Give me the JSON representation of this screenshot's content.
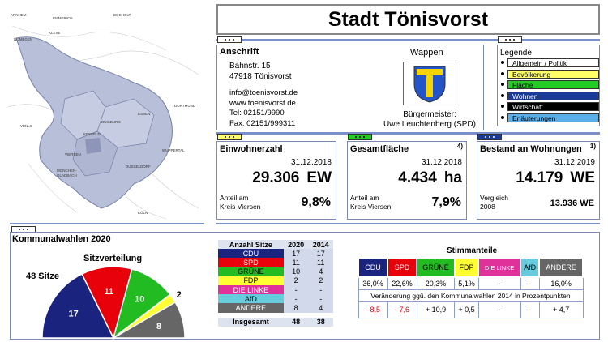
{
  "title": "Stadt Tönisvorst",
  "map": {
    "labels": [
      "ARNHEM",
      "KLEVE",
      "NIJMEGEN",
      "EMMERICH",
      "BOCHOLT",
      "DUISBURG",
      "ESSEN",
      "DORTMUND",
      "KREFELD",
      "DÜSSELDORF",
      "WUPPERTAL",
      "MÖNCHEN-GLADBACH",
      "KÖLN",
      "VENLO",
      "VIERSEN"
    ]
  },
  "address": {
    "heading": "Anschrift",
    "street": "Bahnstr. 15",
    "city": "47918 Tönisvorst",
    "email": "info@toenisvorst.de",
    "web": "www.toenisvorst.de",
    "tel": "Tel: 02151/9990",
    "fax": "Fax: 02151/999311"
  },
  "wappen": {
    "heading": "Wappen",
    "mayor_label": "Bürgermeister:",
    "mayor": "Uwe Leuchtenberg (SPD)"
  },
  "legend": {
    "heading": "Legende",
    "items": [
      {
        "label": "Allgemein / Politik",
        "color": "#ffffff",
        "text": "#000"
      },
      {
        "label": "Bevölkerung",
        "color": "#ffff66",
        "text": "#000"
      },
      {
        "label": "Fläche",
        "color": "#22cc22",
        "text": "#000"
      },
      {
        "label": "Wohnen",
        "color": "#1a3a9a",
        "text": "#fff"
      },
      {
        "label": "Wirtschaft",
        "color": "#000000",
        "text": "#fff"
      },
      {
        "label": "Erläuterungen",
        "color": "#5aaee8",
        "text": "#000"
      }
    ]
  },
  "stats": [
    {
      "title": "Einwohnerzahl",
      "sup": "",
      "date": "31.12.2018",
      "value": "29.306",
      "unit": "EW",
      "sub1": "Anteil am",
      "sub2": "Kreis Viersen",
      "subvalue": "9,8%",
      "tabcolor": "#ffff66"
    },
    {
      "title": "Gesamtfläche",
      "sup": "4)",
      "date": "31.12.2018",
      "value": "4.434",
      "unit": "ha",
      "sub1": "Anteil am",
      "sub2": "Kreis Viersen",
      "subvalue": "7,9%",
      "tabcolor": "#22cc22"
    },
    {
      "title": "Bestand an Wohnungen",
      "sup": "1)",
      "date": "31.12.2019",
      "value": "14.179",
      "unit": "WE",
      "sub1": "Vergleich",
      "sub2": "2008",
      "subvalue": "13.936  WE",
      "tabcolor": "#1a3a9a"
    }
  ],
  "election": {
    "heading": "Kommunalwahlen 2020",
    "pie_title": "Sitzverteilung",
    "seats_label": "48 Sitze"
  },
  "seats_table": {
    "headers": [
      "Anzahl Sitze",
      "2020",
      "2014"
    ],
    "rows": [
      {
        "party": "CDU",
        "v2020": "17",
        "v2014": "17",
        "bg": "#1a237e",
        "fg": "#fff"
      },
      {
        "party": "SPD",
        "v2020": "11",
        "v2014": "11",
        "bg": "#e8000a",
        "fg": "#fff"
      },
      {
        "party": "GRÜNE",
        "v2020": "10",
        "v2014": "4",
        "bg": "#22bb22",
        "fg": "#000"
      },
      {
        "party": "FDP",
        "v2020": "2",
        "v2014": "2",
        "bg": "#ffff33",
        "fg": "#000"
      },
      {
        "party": "DIE LINKE",
        "v2020": "-",
        "v2014": "-",
        "bg": "#e0309a",
        "fg": "#fff"
      },
      {
        "party": "AfD",
        "v2020": "-",
        "v2014": "-",
        "bg": "#66ccdd",
        "fg": "#000"
      },
      {
        "party": "ANDERE",
        "v2020": "8",
        "v2014": "4",
        "bg": "#666666",
        "fg": "#fff"
      }
    ],
    "total_label": "Insgesamt",
    "total_2020": "48",
    "total_2014": "38"
  },
  "stimmanteile": {
    "heading": "Stimmanteile",
    "parties": [
      {
        "name": "CDU",
        "bg": "#1a237e",
        "fg": "#fff"
      },
      {
        "name": "SPD",
        "bg": "#e8000a",
        "fg": "#fff"
      },
      {
        "name": "GRÜNE",
        "bg": "#22bb22",
        "fg": "#000"
      },
      {
        "name": "FDP",
        "bg": "#ffff33",
        "fg": "#000"
      },
      {
        "name": "DIE LINKE",
        "bg": "#e0309a",
        "fg": "#fff"
      },
      {
        "name": "AfD",
        "bg": "#66ccdd",
        "fg": "#000"
      },
      {
        "name": "ANDERE",
        "bg": "#666666",
        "fg": "#fff"
      }
    ],
    "shares": [
      "36,0%",
      "22,6%",
      "20,3%",
      "5,1%",
      "-",
      "-",
      "16,0%"
    ],
    "change_label": "Veränderung ggü. den Kommunalwahlen 2014 in Prozentpunkten",
    "changes": [
      "- 8,5",
      "- 7,6",
      "+ 10,9",
      "+ 0,5",
      "-",
      "-",
      "+ 4,7"
    ]
  },
  "chart_data": {
    "type": "pie",
    "title": "Sitzverteilung",
    "categories": [
      "CDU",
      "SPD",
      "GRÜNE",
      "FDP",
      "ANDERE"
    ],
    "values": [
      17,
      11,
      10,
      2,
      8
    ],
    "colors": [
      "#1a237e",
      "#e8000a",
      "#22bb22",
      "#ffff33",
      "#666666"
    ],
    "label_colors": [
      "#fff",
      "#fff",
      "#fff",
      "#000",
      "#fff"
    ],
    "total_label": "48 Sitze",
    "style": "half-pie"
  }
}
